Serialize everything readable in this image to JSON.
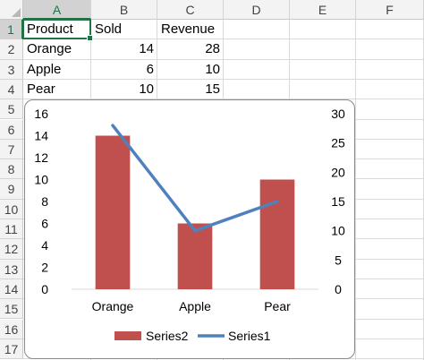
{
  "sheet": {
    "columns": [
      "A",
      "B",
      "C",
      "D",
      "E",
      "F"
    ],
    "rows": [
      "1",
      "2",
      "3",
      "4",
      "5",
      "6",
      "7",
      "8",
      "9",
      "10",
      "11",
      "12",
      "13",
      "14",
      "15",
      "16",
      "17"
    ],
    "active_column": "A",
    "active_row": "1",
    "cells": [
      [
        "Product",
        "Sold",
        "Revenue"
      ],
      [
        "Orange",
        "14",
        "28"
      ],
      [
        "Apple",
        "6",
        "10"
      ],
      [
        "Pear",
        "10",
        "15"
      ]
    ]
  },
  "chart_data": {
    "type": "bar",
    "categories": [
      "Orange",
      "Apple",
      "Pear"
    ],
    "series": [
      {
        "name": "Series2",
        "type": "bar",
        "axis": "left",
        "values": [
          14,
          6,
          10
        ],
        "color": "#c0504d"
      },
      {
        "name": "Series1",
        "type": "line",
        "axis": "right",
        "values": [
          28,
          10,
          15
        ],
        "color": "#4f81bd"
      }
    ],
    "y_left": {
      "min": 0,
      "max": 16,
      "step": 2,
      "ticks": [
        "0",
        "2",
        "4",
        "6",
        "8",
        "10",
        "12",
        "14",
        "16"
      ]
    },
    "y_right": {
      "min": 0,
      "max": 30,
      "step": 5,
      "ticks": [
        "0",
        "5",
        "10",
        "15",
        "20",
        "25",
        "30"
      ]
    },
    "legend_position": "bottom",
    "grid": false
  }
}
